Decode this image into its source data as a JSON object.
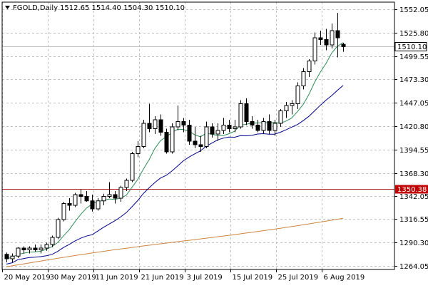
{
  "header": {
    "symbol": "FGOLD,Daily",
    "ohlc": "1512.65 1514.40 1504.30 1510.10"
  },
  "colors": {
    "background": "#ffffff",
    "grid": "#c0c0c0",
    "frame": "#000000",
    "candle": "#000000",
    "ma_fast": "#2e8b57",
    "ma_mid": "#00008b",
    "ma_slow": "#cd853f",
    "hline": "#b22222",
    "price_label_bg": "#c00000",
    "current_label_bg": "#ffffff"
  },
  "chart_data": {
    "type": "candlestick",
    "y_ticks": [
      "1552.05",
      "1525.80",
      "1499.55",
      "1473.30",
      "1447.05",
      "1420.80",
      "1394.55",
      "1368.30",
      "1342.05",
      "1316.55",
      "1290.30",
      "1264.05"
    ],
    "x_ticks": [
      {
        "label": "20 May 2019",
        "index": 0
      },
      {
        "label": "30 May 2019",
        "index": 8
      },
      {
        "label": "11 Jun 2019",
        "index": 16
      },
      {
        "label": "21 Jun 2019",
        "index": 24
      },
      {
        "label": "3 Jul 2019",
        "index": 32
      },
      {
        "label": "15 Jul 2019",
        "index": 40
      },
      {
        "label": "25 Jul 2019",
        "index": 48
      },
      {
        "label": "6 Aug 2019",
        "index": 56
      }
    ],
    "ylim": [
      1260,
      1560
    ],
    "current_price": "1510.10",
    "horizontal_line": "1350.38",
    "candles": [
      [
        1277,
        1279,
        1268,
        1272
      ],
      [
        1272,
        1278,
        1268,
        1275
      ],
      [
        1275,
        1285,
        1273,
        1284
      ],
      [
        1284,
        1286,
        1278,
        1282
      ],
      [
        1282,
        1286,
        1278,
        1284
      ],
      [
        1284,
        1288,
        1280,
        1282
      ],
      [
        1282,
        1288,
        1278,
        1284
      ],
      [
        1284,
        1290,
        1281,
        1288
      ],
      [
        1288,
        1298,
        1285,
        1296
      ],
      [
        1296,
        1318,
        1294,
        1316
      ],
      [
        1316,
        1336,
        1314,
        1334
      ],
      [
        1334,
        1340,
        1326,
        1332
      ],
      [
        1332,
        1346,
        1330,
        1344
      ],
      [
        1344,
        1350,
        1334,
        1342
      ],
      [
        1342,
        1348,
        1336,
        1337
      ],
      [
        1337,
        1344,
        1325,
        1328
      ],
      [
        1328,
        1340,
        1326,
        1337
      ],
      [
        1337,
        1345,
        1332,
        1342
      ],
      [
        1342,
        1358,
        1340,
        1344
      ],
      [
        1344,
        1348,
        1334,
        1340
      ],
      [
        1340,
        1354,
        1336,
        1352
      ],
      [
        1352,
        1362,
        1348,
        1360
      ],
      [
        1360,
        1392,
        1358,
        1390
      ],
      [
        1390,
        1404,
        1386,
        1398
      ],
      [
        1398,
        1428,
        1396,
        1424
      ],
      [
        1424,
        1446,
        1414,
        1418
      ],
      [
        1418,
        1432,
        1412,
        1428
      ],
      [
        1428,
        1434,
        1410,
        1414
      ],
      [
        1414,
        1418,
        1390,
        1392
      ],
      [
        1392,
        1424,
        1390,
        1420
      ],
      [
        1420,
        1444,
        1416,
        1426
      ],
      [
        1426,
        1430,
        1414,
        1422
      ],
      [
        1422,
        1428,
        1400,
        1404
      ],
      [
        1404,
        1420,
        1396,
        1400
      ],
      [
        1400,
        1410,
        1392,
        1398
      ],
      [
        1398,
        1426,
        1396,
        1420
      ],
      [
        1420,
        1424,
        1408,
        1412
      ],
      [
        1412,
        1424,
        1404,
        1416
      ],
      [
        1416,
        1430,
        1412,
        1422
      ],
      [
        1422,
        1428,
        1414,
        1418
      ],
      [
        1418,
        1428,
        1414,
        1420
      ],
      [
        1420,
        1450,
        1418,
        1446
      ],
      [
        1446,
        1452,
        1422,
        1426
      ],
      [
        1426,
        1432,
        1418,
        1422
      ],
      [
        1422,
        1428,
        1414,
        1416
      ],
      [
        1416,
        1430,
        1412,
        1426
      ],
      [
        1426,
        1434,
        1412,
        1416
      ],
      [
        1416,
        1428,
        1410,
        1424
      ],
      [
        1424,
        1440,
        1420,
        1438
      ],
      [
        1438,
        1448,
        1430,
        1444
      ],
      [
        1444,
        1450,
        1434,
        1446
      ],
      [
        1446,
        1470,
        1440,
        1466
      ],
      [
        1466,
        1486,
        1462,
        1482
      ],
      [
        1482,
        1496,
        1476,
        1494
      ],
      [
        1494,
        1526,
        1490,
        1520
      ],
      [
        1520,
        1528,
        1512,
        1518
      ],
      [
        1518,
        1530,
        1506,
        1512
      ],
      [
        1512,
        1536,
        1508,
        1528
      ],
      [
        1528,
        1548,
        1498,
        1520
      ],
      [
        1512.65,
        1514.4,
        1504.3,
        1510.1
      ]
    ]
  }
}
